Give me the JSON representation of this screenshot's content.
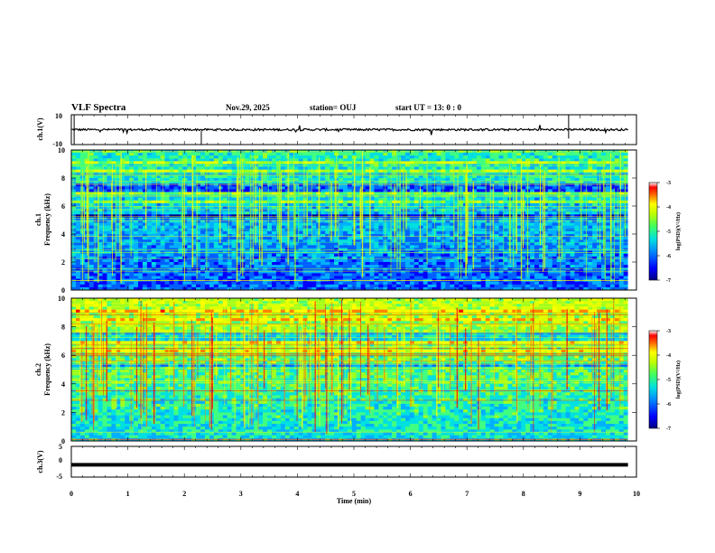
{
  "header": {
    "title": "VLF Spectra",
    "date": "Nov.29, 2025",
    "station": "station= OUJ",
    "start": "start  UT  =   13: 0   : 0"
  },
  "chart_data": [
    {
      "type": "line",
      "panel": "ch1-waveform",
      "ylabel": "ch.1(V)",
      "ylim": [
        -10,
        10
      ],
      "yticks": [
        "10",
        "-10"
      ],
      "xlim": [
        0,
        10
      ],
      "series": [
        {
          "values_description_mean": 0
        }
      ]
    },
    {
      "type": "heatmap",
      "panel": "ch1-spectrogram",
      "ylabel": "ch.1 Frequency (kHz)",
      "ylim": [
        0,
        10
      ],
      "yticks": [
        "0",
        "2",
        "4",
        "6",
        "8",
        "10"
      ],
      "xlim": [
        0,
        10
      ],
      "colorbar": {
        "label": "log(PSD)(V²/Hz)",
        "range": [
          -7,
          -3
        ],
        "ticks": [
          "-3",
          "-4",
          "-5",
          "-6",
          "-7"
        ]
      }
    },
    {
      "type": "heatmap",
      "panel": "ch2-spectrogram",
      "ylabel": "ch.2 Frequency (kHz)",
      "ylim": [
        0,
        10
      ],
      "yticks": [
        "0",
        "2",
        "4",
        "6",
        "8",
        "10"
      ],
      "xlim": [
        0,
        10
      ],
      "colorbar": {
        "label": "log(PSD)(V²/Hz)",
        "range": [
          -7,
          -3
        ],
        "ticks": [
          "-3",
          "-4",
          "-5",
          "-6",
          "-7"
        ]
      }
    },
    {
      "type": "line",
      "panel": "ch3-waveform",
      "ylabel": "ch.3(V)",
      "ylim": [
        -5,
        5
      ],
      "yticks": [
        "5",
        "0",
        "-5"
      ],
      "xlim": [
        0,
        10
      ],
      "series": [
        {
          "values": [
            -1,
            -1
          ]
        }
      ]
    }
  ],
  "xaxis": {
    "label": "Time  (min)",
    "ticks": [
      "0",
      "1",
      "2",
      "3",
      "4",
      "5",
      "6",
      "7",
      "8",
      "9",
      "10"
    ]
  },
  "panel_labels": {
    "ch1_wave": "ch.1(V)",
    "ch1_spec_a": "ch.1",
    "ch1_spec_b": "Frequency  (kHz)",
    "ch2_spec_a": "ch.2",
    "ch2_spec_b": "Frequency  (kHz)",
    "ch3_wave": "ch.3(V)",
    "cb1": "log(PSD)(V²/Hz)",
    "cb2": "log(PSD)(V²/Hz)"
  },
  "colors": {
    "colormap": [
      "#00008c",
      "#0000ff",
      "#0080ff",
      "#00e0e0",
      "#40ff80",
      "#c0ff00",
      "#ffff00",
      "#ff8000",
      "#ff0000",
      "#ffffff"
    ]
  }
}
